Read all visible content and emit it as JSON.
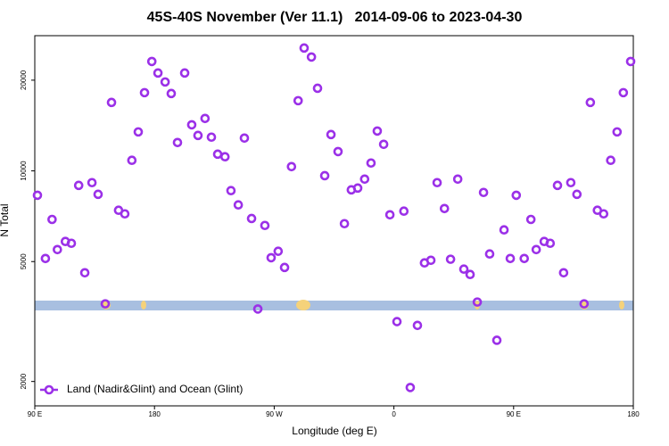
{
  "chart_data": {
    "type": "scatter",
    "title": "45S-40S November (Ver 11.1)   2014-09-06 to 2023-04-30",
    "x_label": "Longitude (deg E)",
    "y_label": "N Total",
    "xlim": [
      90,
      540
    ],
    "xticks": [
      {
        "value": 90,
        "label": "90 E"
      },
      {
        "value": 180,
        "label": "180"
      },
      {
        "value": 270,
        "label": "90 W"
      },
      {
        "value": 360,
        "label": "0"
      },
      {
        "value": 450,
        "label": "90 E"
      },
      {
        "value": 540,
        "label": "180"
      }
    ],
    "ylim": [
      1660,
      28100
    ],
    "yscale": "log",
    "yticks": [
      2000,
      5000,
      10000,
      20000
    ],
    "legend": "bottom-left",
    "series": [
      {
        "name": "Land (Nadir&Glint) and Ocean (Glint)",
        "color": "#9b30e8",
        "x": [
          92,
          98,
          103,
          107,
          113,
          117.5,
          123,
          127.6,
          133,
          137.6,
          143,
          147.7,
          153,
          157.7,
          163,
          167.8,
          172.5,
          178,
          182.6,
          188,
          192.6,
          197.3,
          202.7,
          208,
          212.7,
          218,
          222.8,
          227.5,
          233,
          237.5,
          243,
          247.6,
          253,
          257.7,
          263,
          267.7,
          273,
          277.8,
          283,
          288,
          292.5,
          298,
          302.6,
          308,
          312.7,
          318,
          322.8,
          328,
          332.8,
          338,
          342.8,
          347.5,
          352.3,
          357,
          362.3,
          367.5,
          372.3,
          377.7,
          383,
          387.8,
          392.5,
          398,
          402.6,
          408,
          412.6,
          417.3,
          422.7,
          427.4,
          432,
          437.4,
          442.8,
          447.5,
          452,
          458,
          463,
          467,
          473,
          477.5,
          483,
          487.6,
          493,
          497.6,
          503,
          507.7,
          513,
          517.7,
          523,
          527.8,
          532.5,
          538
        ],
        "values": [
          8300,
          5120,
          6900,
          5480,
          5830,
          5750,
          8950,
          4590,
          9140,
          8360,
          3620,
          16870,
          7400,
          7200,
          10840,
          13470,
          18180,
          23070,
          21130,
          19730,
          18060,
          12420,
          21130,
          14220,
          13110,
          14930,
          12940,
          11360,
          11140,
          8600,
          7710,
          12850,
          6950,
          3480,
          6590,
          5150,
          5410,
          4780,
          10330,
          17100,
          25570,
          23870,
          18800,
          9640,
          13200,
          11590,
          6680,
          8650,
          8770,
          9390,
          10620,
          13560,
          12250,
          7150,
          3160,
          7350,
          1910,
          3070,
          4950,
          5050,
          9140,
          7500,
          5090,
          9390,
          4720,
          4530,
          3670,
          8480,
          5300,
          2740,
          6370,
          5120,
          8300,
          5120,
          6900,
          5480,
          5830,
          5750,
          8950,
          4590,
          9140,
          8360,
          3620,
          16870,
          7400,
          7200,
          10840,
          13470,
          18180,
          23070
        ]
      }
    ]
  }
}
